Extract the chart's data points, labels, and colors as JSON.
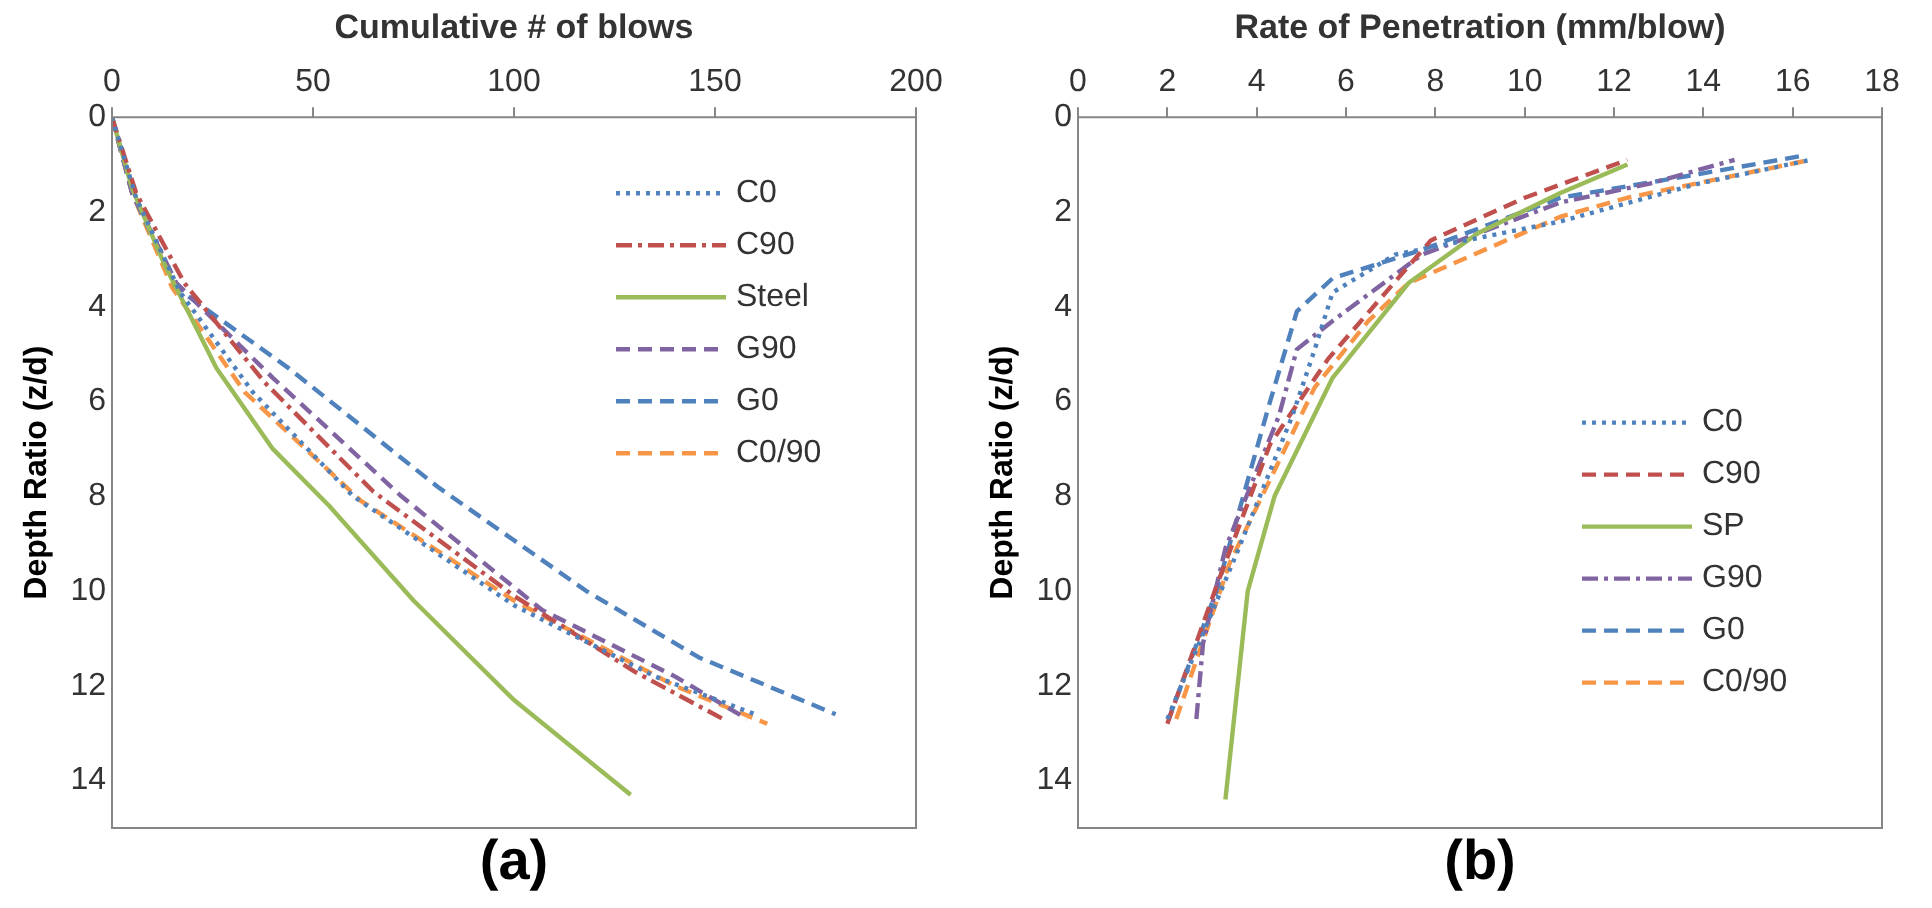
{
  "chart_data": [
    {
      "type": "line",
      "xlabel": "Cumulative # of blows",
      "ylabel": "Depth Ratio (z/d)",
      "xlim": [
        0,
        200
      ],
      "xticks": [
        0,
        50,
        100,
        150,
        200
      ],
      "ylim": [
        15,
        0
      ],
      "yticks": [
        0,
        2,
        4,
        6,
        8,
        10,
        12,
        14
      ],
      "grid": false,
      "legend": "top right",
      "annotations": [
        "(a)"
      ],
      "series": [
        {
          "name": "C0",
          "color": "#4f81bd",
          "line_style": "dotted",
          "x": [
            0,
            6,
            17,
            35,
            60,
            100,
            135,
            160
          ],
          "values": [
            0,
            1.7,
            3.7,
            5.8,
            8,
            10.3,
            11.8,
            12.6
          ]
        },
        {
          "name": "C90",
          "color": "#c0504d",
          "line_style": "dashdot",
          "x": [
            0,
            6,
            18,
            38,
            65,
            100,
            130,
            152
          ],
          "values": [
            0,
            1.6,
            3.5,
            5.6,
            7.9,
            10.1,
            11.7,
            12.7
          ]
        },
        {
          "name": "Steel",
          "color": "#9bbb59",
          "line_style": "solid",
          "x": [
            0,
            5,
            13,
            26,
            40,
            54,
            75,
            100,
            129
          ],
          "values": [
            0,
            1.5,
            3.1,
            5.3,
            7,
            8.2,
            10.2,
            12.3,
            14.3
          ]
        },
        {
          "name": "G90",
          "color": "#8064a2",
          "line_style": "dashed",
          "x": [
            0,
            5,
            16,
            40,
            72,
            107,
            140,
            158
          ],
          "values": [
            0,
            1.6,
            3.5,
            5.5,
            8,
            10.4,
            11.8,
            12.7
          ]
        },
        {
          "name": "G0",
          "color": "#4f81bd",
          "line_style": "dashed",
          "x": [
            0,
            5,
            16,
            44,
            81,
            118,
            146,
            180
          ],
          "values": [
            0,
            1.6,
            3.6,
            5.3,
            7.8,
            10,
            11.4,
            12.6
          ]
        },
        {
          "name": "C0/90",
          "color": "#f79646",
          "line_style": "dashed",
          "x": [
            0,
            5,
            15,
            33,
            62,
            100,
            140,
            163
          ],
          "values": [
            0,
            1.6,
            3.6,
            5.8,
            8.1,
            10.2,
            12,
            12.8
          ]
        }
      ]
    },
    {
      "type": "line",
      "xlabel": "Rate of Penetration (mm/blow)",
      "ylabel": "Depth Ratio (z/d)",
      "xlim": [
        0,
        18
      ],
      "xticks": [
        0,
        2,
        4,
        6,
        8,
        10,
        12,
        14,
        16,
        18
      ],
      "ylim": [
        15,
        0
      ],
      "yticks": [
        0,
        2,
        4,
        6,
        8,
        10,
        12,
        14
      ],
      "grid": false,
      "legend": "right",
      "annotations": [
        "(b)"
      ],
      "series": [
        {
          "name": "C0",
          "color": "#4f81bd",
          "line_style": "dotted",
          "x": [
            2,
            3.6,
            4.8,
            5.3,
            5.7,
            7.1,
            10.8,
            13.9,
            16.4
          ],
          "values": [
            12.7,
            9.1,
            6.3,
            4.9,
            3.7,
            2.9,
            2.2,
            1.4,
            0.9
          ]
        },
        {
          "name": "C90",
          "color": "#c0504d",
          "line_style": "dashed",
          "x": [
            2,
            3.1,
            4.3,
            5.6,
            7.9,
            10,
            12.3
          ],
          "values": [
            12.8,
            9.9,
            6.9,
            5.1,
            2.6,
            1.7,
            0.9
          ]
        },
        {
          "name": "SP",
          "color": "#9bbb59",
          "line_style": "solid",
          "x": [
            3.3,
            3.8,
            4.4,
            5.7,
            7.4,
            8.95,
            10.8,
            12.3
          ],
          "values": [
            14.4,
            10,
            8,
            5.5,
            3.5,
            2.45,
            1.6,
            1
          ]
        },
        {
          "name": "G90",
          "color": "#8064a2",
          "line_style": "dashdot",
          "x": [
            2.65,
            2.8,
            3.3,
            4.5,
            4.9,
            5.7,
            7.7,
            10.8,
            12.8,
            14.7
          ],
          "values": [
            12.7,
            11.1,
            9.1,
            6.3,
            4.9,
            4.3,
            2.9,
            1.8,
            1.4,
            0.9
          ]
        },
        {
          "name": "G0",
          "color": "#4f81bd",
          "line_style": "dashed",
          "x": [
            2.03,
            3.1,
            4.3,
            4.9,
            5.7,
            7.7,
            10.8,
            13.9,
            16.3
          ],
          "values": [
            12.7,
            10,
            6,
            4.1,
            3.4,
            2.8,
            1.7,
            1.2,
            0.8
          ]
        },
        {
          "name": "C0/90",
          "color": "#f79646",
          "line_style": "dashed",
          "x": [
            2.2,
            3.4,
            5.3,
            6.5,
            7.4,
            10.8,
            12.3,
            16.4
          ],
          "values": [
            12.7,
            9.4,
            5.7,
            4.3,
            3.5,
            2.1,
            1.7,
            0.9
          ]
        }
      ]
    }
  ]
}
